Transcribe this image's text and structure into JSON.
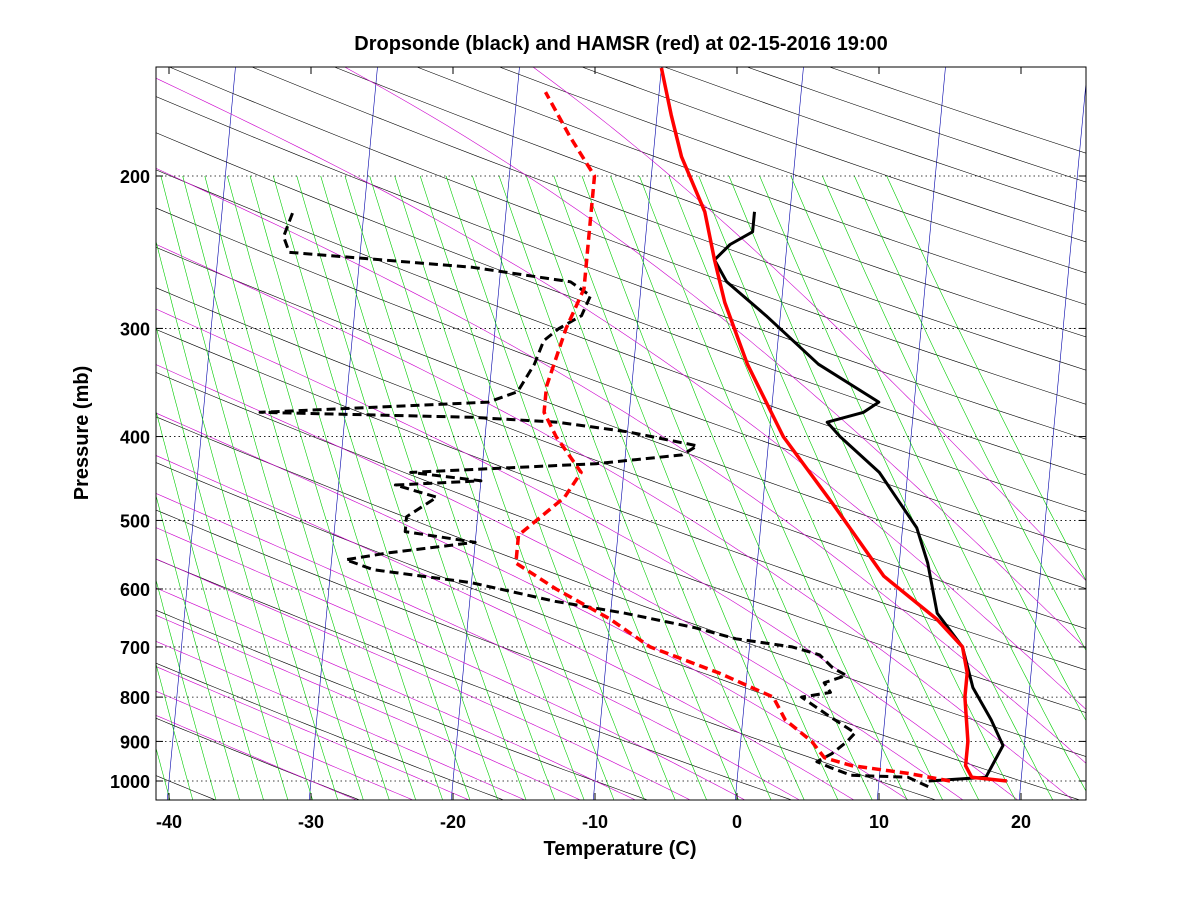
{
  "chart_data": {
    "type": "line",
    "subtype": "skew-T log-P thermodynamic diagram",
    "title": "Dropsonde (black) and HAMSR (red) at 02-15-2016 19:00",
    "xlabel": "Temperature (C)",
    "ylabel": "Pressure (mb)",
    "xlim": [
      -40,
      24
    ],
    "ylim": [
      1050,
      150
    ],
    "y_scale": "log",
    "x_ticks": [
      -40,
      -30,
      -20,
      -10,
      0,
      10,
      20
    ],
    "y_ticks": [
      200,
      300,
      400,
      500,
      600,
      700,
      800,
      900,
      1000
    ],
    "grid": "dotted horizontal isobars",
    "background_lines": {
      "isotherms": "#0000aa",
      "dry_adiabats": "#000000",
      "moist_adiabats": "#cc00cc",
      "mixing_ratio_lines": "#00cc00"
    },
    "series": [
      {
        "description": "Dropsonde temperature",
        "color": "#000000",
        "style": "solid",
        "points": [
          [
            13.5,
            1000
          ],
          [
            17.5,
            990
          ],
          [
            18.5,
            910
          ],
          [
            17.5,
            850
          ],
          [
            16.0,
            780
          ],
          [
            15.0,
            700
          ],
          [
            13.0,
            640
          ],
          [
            12.0,
            560
          ],
          [
            11.0,
            510
          ],
          [
            8.0,
            440
          ],
          [
            5.0,
            400
          ],
          [
            4.0,
            385
          ],
          [
            6.5,
            375
          ],
          [
            7.5,
            365
          ],
          [
            3.0,
            330
          ],
          [
            -1.0,
            290
          ],
          [
            -4.0,
            265
          ],
          [
            -5.0,
            250
          ],
          [
            -4.0,
            240
          ],
          [
            -2.5,
            232
          ],
          [
            -2.5,
            220
          ]
        ]
      },
      {
        "description": "Dropsonde dewpoint",
        "color": "#000000",
        "style": "dashed",
        "points": [
          [
            13.5,
            1015
          ],
          [
            12.0,
            990
          ],
          [
            8.0,
            985
          ],
          [
            6.5,
            965
          ],
          [
            5.5,
            950
          ],
          [
            6.5,
            930
          ],
          [
            7.5,
            900
          ],
          [
            8.0,
            880
          ],
          [
            7.0,
            860
          ],
          [
            6.0,
            840
          ],
          [
            5.0,
            820
          ],
          [
            4.0,
            800
          ],
          [
            6.0,
            790
          ],
          [
            5.5,
            770
          ],
          [
            7.0,
            755
          ],
          [
            6.0,
            740
          ],
          [
            5.0,
            715
          ],
          [
            3.0,
            700
          ],
          [
            -1.0,
            685
          ],
          [
            -4.0,
            665
          ],
          [
            -9.0,
            640
          ],
          [
            -14.0,
            620
          ],
          [
            -20.0,
            590
          ],
          [
            -27.0,
            570
          ],
          [
            -29.0,
            555
          ],
          [
            -26.0,
            545
          ],
          [
            -20.0,
            530
          ],
          [
            -25.0,
            515
          ],
          [
            -25.0,
            495
          ],
          [
            -23.0,
            470
          ],
          [
            -26.0,
            455
          ],
          [
            -20.0,
            450
          ],
          [
            -25.0,
            440
          ],
          [
            -12.0,
            430
          ],
          [
            -6.0,
            420
          ],
          [
            -5.0,
            410
          ],
          [
            -10.0,
            395
          ],
          [
            -15.0,
            385
          ],
          [
            -21.0,
            380
          ],
          [
            -36.0,
            375
          ],
          [
            -28.0,
            370
          ],
          [
            -20.0,
            365
          ],
          [
            -18.0,
            355
          ],
          [
            -17.0,
            330
          ],
          [
            -16.5,
            310
          ],
          [
            -15.5,
            300
          ],
          [
            -14.0,
            290
          ],
          [
            -13.5,
            275
          ],
          [
            -15.0,
            265
          ],
          [
            -22.0,
            255
          ],
          [
            -35.0,
            245
          ],
          [
            -35.5,
            235
          ],
          [
            -35.0,
            220
          ]
        ]
      },
      {
        "description": "HAMSR temperature",
        "color": "#ff0000",
        "style": "solid",
        "points": [
          [
            19.0,
            1000
          ],
          [
            16.5,
            990
          ],
          [
            16.0,
            960
          ],
          [
            16.0,
            900
          ],
          [
            15.5,
            800
          ],
          [
            15.5,
            750
          ],
          [
            15.0,
            700
          ],
          [
            13.0,
            650
          ],
          [
            9.0,
            580
          ],
          [
            5.0,
            480
          ],
          [
            1.0,
            400
          ],
          [
            -2.0,
            330
          ],
          [
            -4.0,
            280
          ],
          [
            -5.0,
            250
          ],
          [
            -6.0,
            220
          ],
          [
            -8.0,
            190
          ],
          [
            -9.0,
            170
          ],
          [
            -10.0,
            150
          ]
        ]
      },
      {
        "description": "HAMSR dewpoint",
        "color": "#ff0000",
        "style": "dashed",
        "points": [
          [
            15.0,
            1000
          ],
          [
            12.0,
            980
          ],
          [
            8.0,
            960
          ],
          [
            6.0,
            940
          ],
          [
            5.0,
            900
          ],
          [
            3.0,
            850
          ],
          [
            2.0,
            800
          ],
          [
            -2.0,
            750
          ],
          [
            -7.0,
            700
          ],
          [
            -10.0,
            650
          ],
          [
            -14.0,
            600
          ],
          [
            -17.0,
            560
          ],
          [
            -17.0,
            520
          ],
          [
            -14.0,
            470
          ],
          [
            -13.0,
            440
          ],
          [
            -15.0,
            400
          ],
          [
            -16.0,
            375
          ],
          [
            -16.0,
            350
          ],
          [
            -15.0,
            300
          ],
          [
            -14.0,
            270
          ],
          [
            -14.0,
            240
          ],
          [
            -14.0,
            200
          ],
          [
            -16.0,
            180
          ],
          [
            -18.0,
            160
          ]
        ]
      }
    ]
  }
}
